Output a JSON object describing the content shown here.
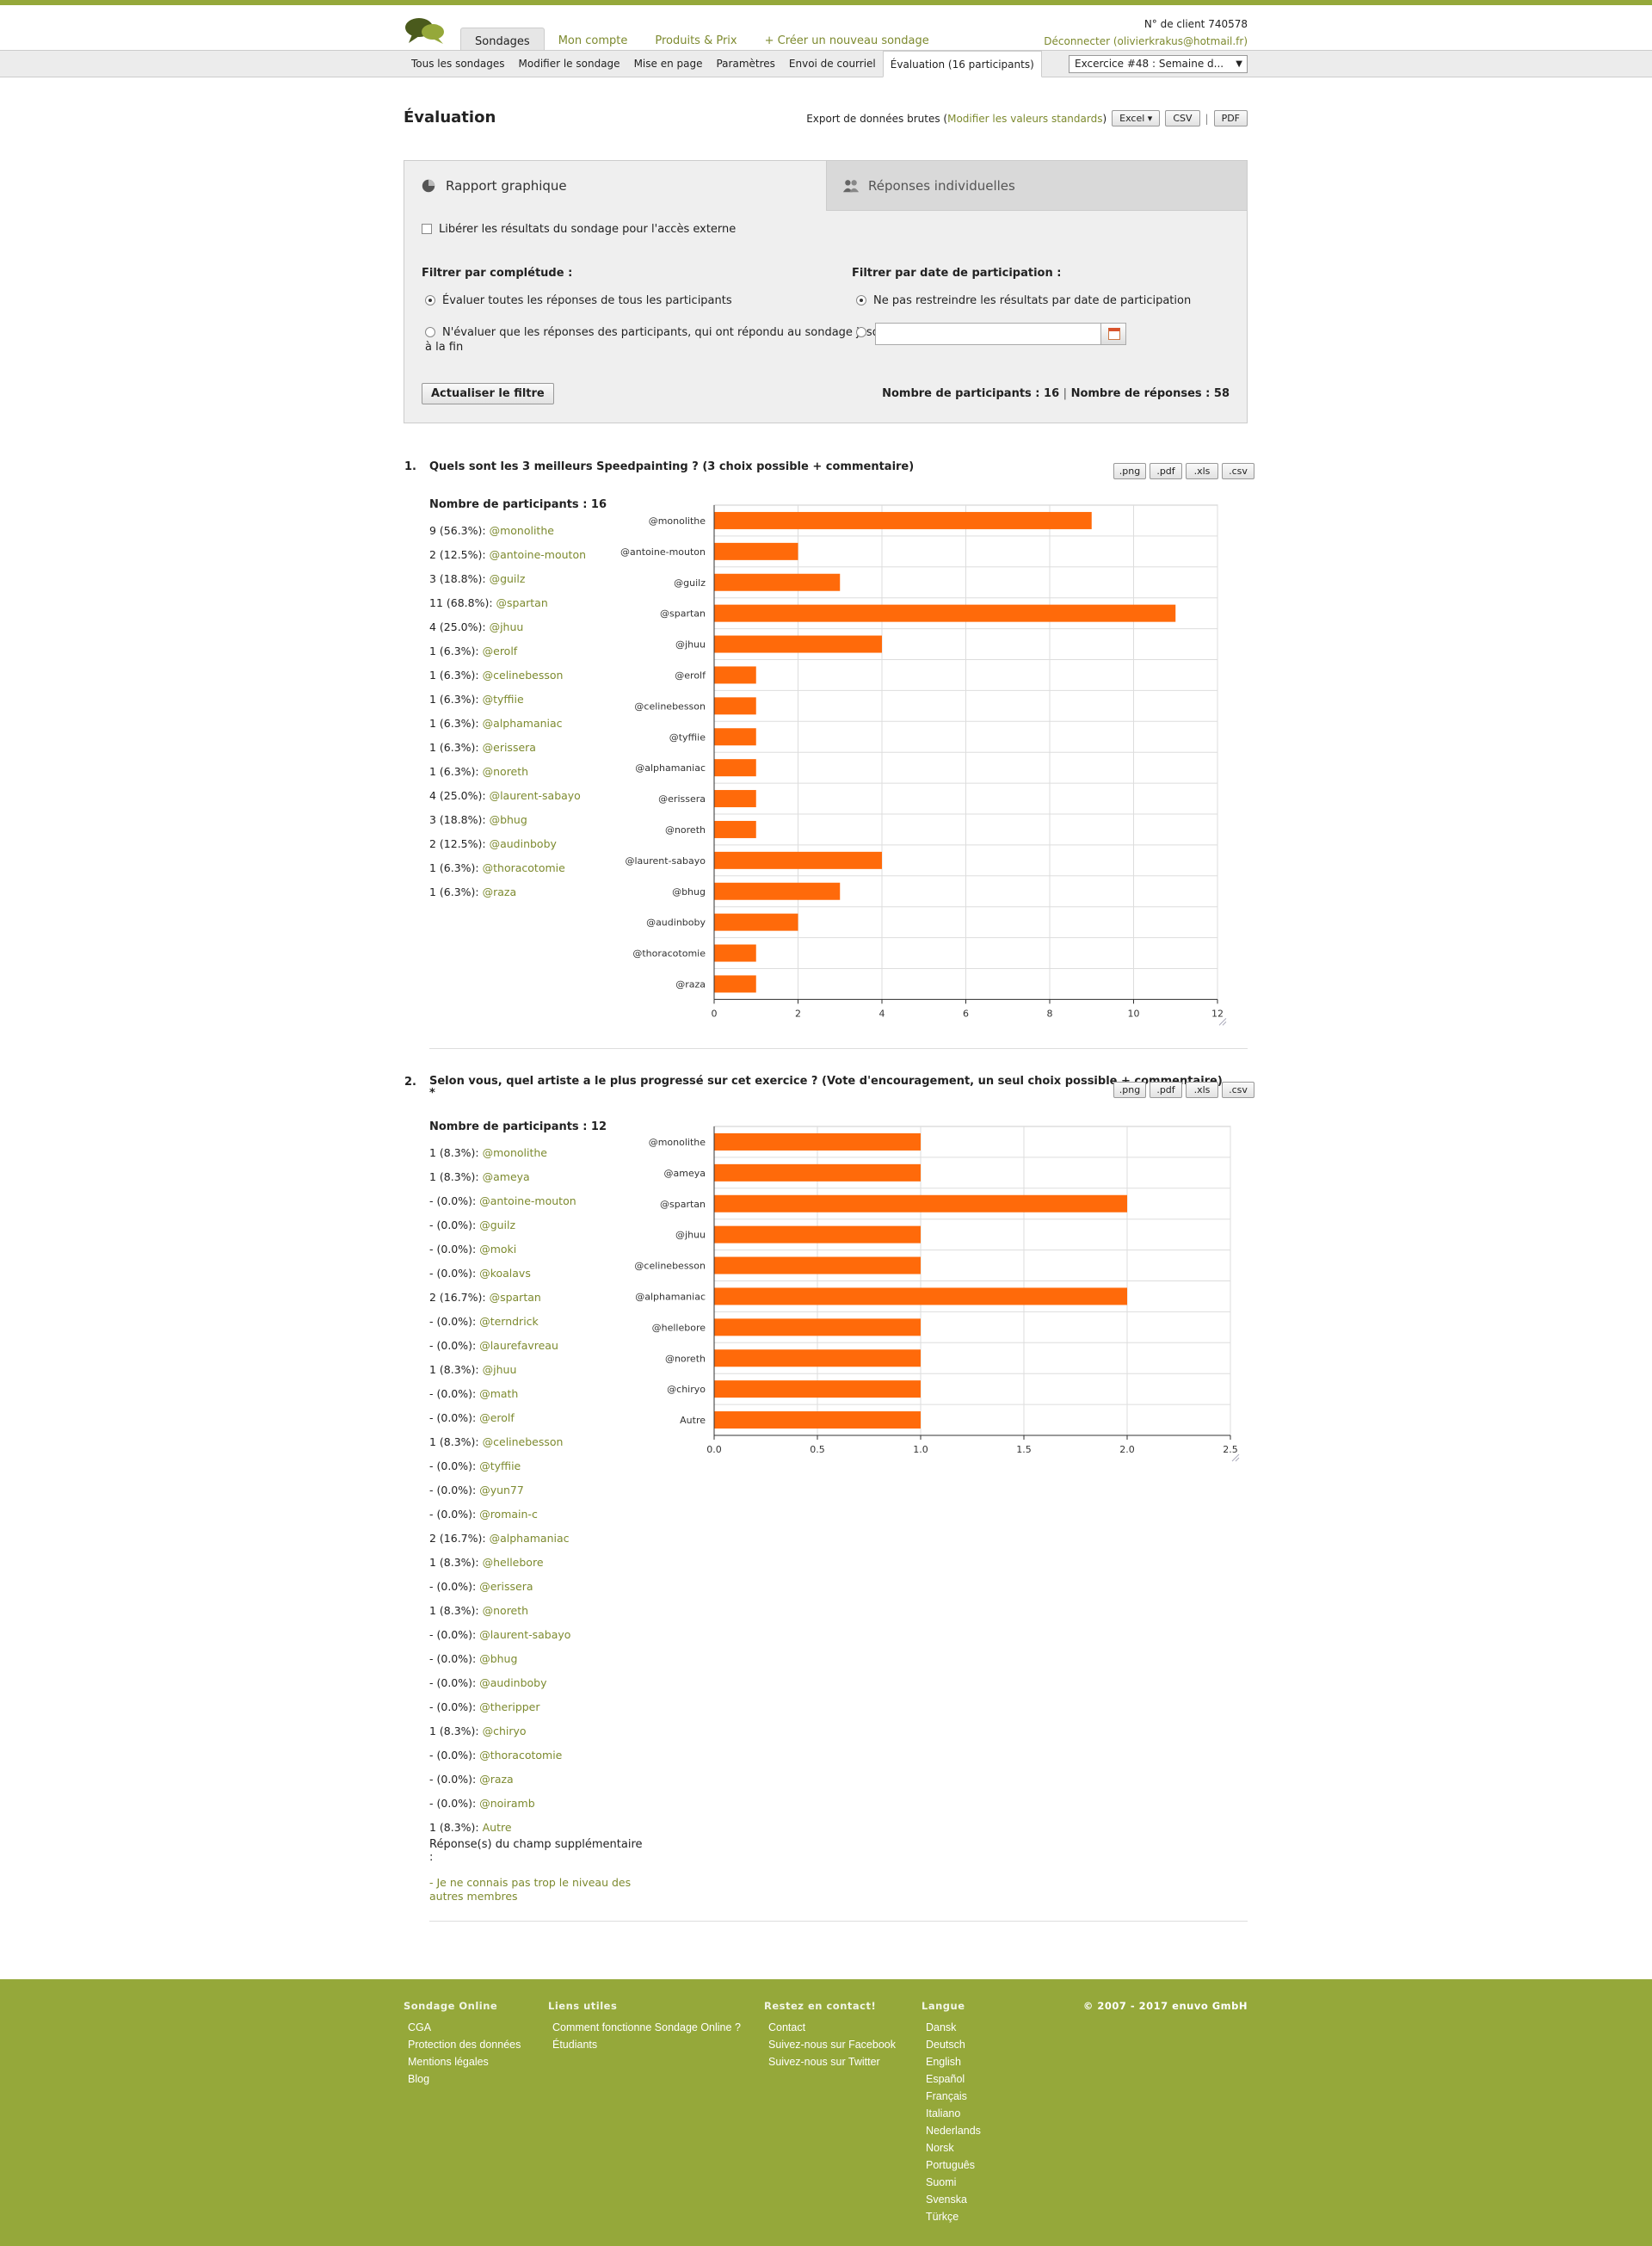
{
  "header": {
    "nav": [
      "Sondages",
      "Mon compte",
      "Produits & Prix",
      "+ Créer un nouveau sondage"
    ],
    "client_label": "N° de client 740578",
    "logout_label": "Déconnecter",
    "email": "(olivierkrakus@hotmail.fr)"
  },
  "subnav": {
    "items": [
      "Tous les sondages",
      "Modifier le sondage",
      "Mise en page",
      "Paramètres",
      "Envoi de courriel",
      "Évaluation (16 participants)"
    ],
    "survey_select": "Excercice #48 : Semaine d..."
  },
  "page": {
    "title": "Évaluation",
    "export_label": "Export de données brutes (",
    "export_link": "Modifier les valeurs standards",
    "export_close": ")",
    "btn_excel": "Excel ▾",
    "btn_csv": "CSV",
    "btn_pdf": "PDF"
  },
  "panel": {
    "tab_graph": "Rapport graphique",
    "tab_individual": "Réponses individuelles",
    "release_label": "Libérer les résultats du sondage pour l'accès externe",
    "filter_complete_title": "Filtrer par complétude :",
    "opt_all": "Évaluer toutes les réponses de tous les participants",
    "opt_complete_1": "N'évaluer que les réponses des participants, qui ont répondu au sondage jusqu'",
    "opt_complete_2": "à la fin",
    "filter_date_title": "Filtrer par date de participation :",
    "opt_no_date": "Ne pas restreindre les résultats par date de participation",
    "update_btn": "Actualiser le filtre",
    "summary_participants": "Nombre de participants : 16",
    "summary_sep": "|",
    "summary_responses": "Nombre de réponses : 58"
  },
  "export_buttons": [
    ".png",
    ".pdf",
    ".xls",
    ".csv"
  ],
  "questions": [
    {
      "num": "1.",
      "title": "Quels sont les 3 meilleurs Speedpainting ? (3 choix possible + commentaire)",
      "participants": "Nombre de participants : 16",
      "stats": [
        {
          "count": "9 (56.3%):",
          "name": "@monolithe"
        },
        {
          "count": "2 (12.5%):",
          "name": "@antoine-mouton"
        },
        {
          "count": "3 (18.8%):",
          "name": "@guilz"
        },
        {
          "count": "11 (68.8%):",
          "name": "@spartan"
        },
        {
          "count": "4 (25.0%):",
          "name": "@jhuu"
        },
        {
          "count": "1 (6.3%):",
          "name": "@erolf"
        },
        {
          "count": "1 (6.3%):",
          "name": "@celinebesson"
        },
        {
          "count": "1 (6.3%):",
          "name": "@tyffiie"
        },
        {
          "count": "1 (6.3%):",
          "name": "@alphamaniac"
        },
        {
          "count": "1 (6.3%):",
          "name": "@erissera"
        },
        {
          "count": "1 (6.3%):",
          "name": "@noreth"
        },
        {
          "count": "4 (25.0%):",
          "name": "@laurent-sabayo"
        },
        {
          "count": "3 (18.8%):",
          "name": "@bhug"
        },
        {
          "count": "2 (12.5%):",
          "name": "@audinboby"
        },
        {
          "count": "1 (6.3%):",
          "name": "@thoracotomie"
        },
        {
          "count": "1 (6.3%):",
          "name": "@raza"
        }
      ]
    },
    {
      "num": "2.",
      "title": "Selon vous, quel artiste a le plus progressé sur cet exercice ? (Vote d'encouragement, un seul choix possible + commentaire)",
      "title_star": "*",
      "participants": "Nombre de participants : 12",
      "stats": [
        {
          "count": "1 (8.3%):",
          "name": "@monolithe"
        },
        {
          "count": "1 (8.3%):",
          "name": "@ameya"
        },
        {
          "count": "- (0.0%):",
          "name": "@antoine-mouton"
        },
        {
          "count": "- (0.0%):",
          "name": "@guilz"
        },
        {
          "count": "- (0.0%):",
          "name": "@moki"
        },
        {
          "count": "- (0.0%):",
          "name": "@koalavs"
        },
        {
          "count": "2 (16.7%):",
          "name": "@spartan"
        },
        {
          "count": "- (0.0%):",
          "name": "@terndrick"
        },
        {
          "count": "- (0.0%):",
          "name": "@laurefavreau"
        },
        {
          "count": "1 (8.3%):",
          "name": "@jhuu"
        },
        {
          "count": "- (0.0%):",
          "name": "@math"
        },
        {
          "count": "- (0.0%):",
          "name": "@erolf"
        },
        {
          "count": "1 (8.3%):",
          "name": "@celinebesson"
        },
        {
          "count": "- (0.0%):",
          "name": "@tyffiie"
        },
        {
          "count": "- (0.0%):",
          "name": "@yun77"
        },
        {
          "count": "- (0.0%):",
          "name": "@romain-c"
        },
        {
          "count": "2 (16.7%):",
          "name": "@alphamaniac"
        },
        {
          "count": "1 (8.3%):",
          "name": "@hellebore"
        },
        {
          "count": "- (0.0%):",
          "name": "@erissera"
        },
        {
          "count": "1 (8.3%):",
          "name": "@noreth"
        },
        {
          "count": "- (0.0%):",
          "name": "@laurent-sabayo"
        },
        {
          "count": "- (0.0%):",
          "name": "@bhug"
        },
        {
          "count": "- (0.0%):",
          "name": "@audinboby"
        },
        {
          "count": "- (0.0%):",
          "name": "@theripper"
        },
        {
          "count": "1 (8.3%):",
          "name": "@chiryo"
        },
        {
          "count": "- (0.0%):",
          "name": "@thoracotomie"
        },
        {
          "count": "- (0.0%):",
          "name": "@raza"
        },
        {
          "count": "- (0.0%):",
          "name": "@noiramb"
        },
        {
          "count": "1 (8.3%):",
          "name": "Autre"
        }
      ],
      "extra_title_1": "Réponse(s) du champ supplémentaire",
      "extra_title_2": ":",
      "extra_answer_1": "- Je ne connais pas trop le niveau des",
      "extra_answer_2": "autres membres"
    }
  ],
  "chart_data": [
    {
      "type": "bar",
      "orientation": "horizontal",
      "categories": [
        "@monolithe",
        "@antoine-mouton",
        "@guilz",
        "@spartan",
        "@jhuu",
        "@erolf",
        "@celinebesson",
        "@tyffiie",
        "@alphamaniac",
        "@erissera",
        "@noreth",
        "@laurent-sabayo",
        "@bhug",
        "@audinboby",
        "@thoracotomie",
        "@raza"
      ],
      "values": [
        9,
        2,
        3,
        11,
        4,
        1,
        1,
        1,
        1,
        1,
        1,
        4,
        3,
        2,
        1,
        1
      ],
      "xlim": [
        0,
        12
      ],
      "xticks": [
        "0",
        "2",
        "4",
        "6",
        "8",
        "10",
        "12"
      ],
      "grid": true,
      "color": "#ff6a0a"
    },
    {
      "type": "bar",
      "orientation": "horizontal",
      "categories": [
        "@monolithe",
        "@ameya",
        "@spartan",
        "@jhuu",
        "@celinebesson",
        "@alphamaniac",
        "@hellebore",
        "@noreth",
        "@chiryo",
        "Autre"
      ],
      "values": [
        1,
        1,
        2,
        1,
        1,
        2,
        1,
        1,
        1,
        1
      ],
      "xlim": [
        0,
        2.5
      ],
      "xticks": [
        "0.0",
        "0.5",
        "1.0",
        "1.5",
        "2.0",
        "2.5"
      ],
      "grid": true,
      "color": "#ff6a0a"
    }
  ],
  "footer": {
    "col1_title": "Sondage Online",
    "col1_items": [
      "CGA",
      "Protection des données",
      "Mentions légales",
      "Blog"
    ],
    "col2_title": "Liens utiles",
    "col2_items": [
      "Comment fonctionne Sondage Online ?",
      "Étudiants"
    ],
    "col3_title": "Restez en contact!",
    "col3_items": [
      "Contact",
      "Suivez-nous sur Facebook",
      "Suivez-nous sur Twitter"
    ],
    "col4_title": "Langue",
    "col4_items": [
      "Dansk",
      "Deutsch",
      "English",
      "Español",
      "Français",
      "Italiano",
      "Nederlands",
      "Norsk",
      "Português",
      "Suomi",
      "Svenska",
      "Türkçe"
    ],
    "copyright": "© 2007 - 2017 enuvo GmbH"
  }
}
